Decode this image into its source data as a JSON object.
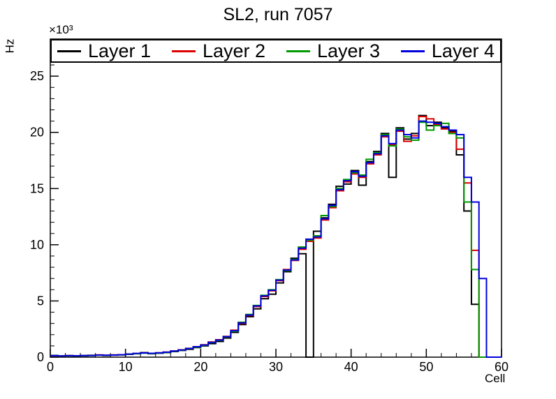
{
  "title": "SL2, run 7057",
  "chart_data": {
    "type": "line",
    "subtype": "step-histogram",
    "title": "SL2, run 7057",
    "xlabel": "Cell",
    "ylabel": "Hz",
    "y_unit_multiplier": "×10³",
    "xlim": [
      0,
      60
    ],
    "ylim": [
      0,
      28.3
    ],
    "xticks": [
      0,
      10,
      20,
      30,
      40,
      50,
      60
    ],
    "yticks": [
      0,
      5,
      10,
      15,
      20,
      25
    ],
    "x_minor_step": 2,
    "y_minor_step": 1,
    "bin_width": 1,
    "grid": false,
    "legend_position": "top",
    "series": [
      {
        "name": "Layer 1",
        "color": "#000000",
        "values": [
          0.15,
          0.1,
          0.12,
          0.1,
          0.12,
          0.15,
          0.18,
          0.15,
          0.18,
          0.2,
          0.25,
          0.3,
          0.4,
          0.3,
          0.35,
          0.4,
          0.5,
          0.6,
          0.7,
          0.85,
          1.0,
          1.2,
          1.4,
          1.7,
          2.2,
          2.9,
          3.6,
          4.3,
          5.2,
          5.6,
          6.6,
          7.6,
          8.8,
          9.2,
          0.0,
          11.2,
          12.4,
          13.6,
          15.2,
          15.4,
          16.6,
          15.3,
          17.4,
          18.3,
          19.9,
          16.0,
          20.4,
          19.4,
          19.9,
          21.5,
          20.6,
          20.9,
          20.4,
          20.1,
          18.0,
          13.0,
          4.7,
          0,
          0,
          0
        ]
      },
      {
        "name": "Layer 2",
        "color": "#dd0000",
        "values": [
          0.12,
          0.1,
          0.14,
          0.12,
          0.14,
          0.16,
          0.2,
          0.17,
          0.2,
          0.22,
          0.28,
          0.32,
          0.38,
          0.33,
          0.38,
          0.45,
          0.55,
          0.65,
          0.78,
          0.92,
          1.1,
          1.35,
          1.55,
          1.85,
          2.4,
          3.0,
          3.7,
          4.5,
          5.4,
          5.9,
          6.8,
          7.8,
          8.6,
          9.6,
          10.3,
          10.6,
          12.2,
          13.3,
          14.8,
          15.6,
          16.3,
          16.0,
          17.2,
          18.0,
          19.6,
          18.9,
          20.1,
          19.2,
          19.7,
          21.4,
          21.2,
          20.7,
          20.3,
          20.0,
          18.5,
          15.5,
          9.5,
          0,
          0,
          0
        ]
      },
      {
        "name": "Layer 3",
        "color": "#009900",
        "values": [
          0.14,
          0.11,
          0.13,
          0.11,
          0.13,
          0.16,
          0.19,
          0.16,
          0.19,
          0.21,
          0.26,
          0.31,
          0.36,
          0.32,
          0.37,
          0.42,
          0.52,
          0.62,
          0.75,
          0.9,
          1.05,
          1.3,
          1.5,
          1.8,
          2.3,
          3.1,
          3.8,
          4.6,
          5.5,
          6.0,
          6.9,
          7.7,
          8.7,
          9.8,
          10.4,
          10.8,
          12.6,
          13.4,
          15.0,
          15.8,
          16.4,
          16.2,
          17.6,
          18.2,
          19.8,
          18.8,
          20.3,
          19.6,
          19.3,
          20.9,
          20.2,
          20.6,
          20.8,
          19.9,
          19.5,
          13.8,
          7.8,
          0,
          0,
          0
        ]
      },
      {
        "name": "Layer 4",
        "color": "#0000dd",
        "values": [
          0.13,
          0.11,
          0.13,
          0.12,
          0.14,
          0.15,
          0.19,
          0.17,
          0.19,
          0.22,
          0.27,
          0.33,
          0.37,
          0.34,
          0.39,
          0.44,
          0.54,
          0.64,
          0.77,
          0.93,
          1.08,
          1.32,
          1.52,
          1.82,
          2.35,
          3.05,
          3.75,
          4.55,
          5.45,
          5.95,
          6.85,
          7.75,
          8.65,
          9.7,
          10.5,
          10.7,
          12.3,
          13.5,
          14.9,
          15.7,
          16.5,
          16.1,
          17.3,
          18.1,
          19.7,
          19.0,
          20.2,
          19.8,
          19.5,
          21.0,
          20.9,
          20.8,
          20.5,
          20.2,
          19.8,
          16.0,
          13.8,
          7.0,
          0,
          0
        ]
      }
    ]
  }
}
